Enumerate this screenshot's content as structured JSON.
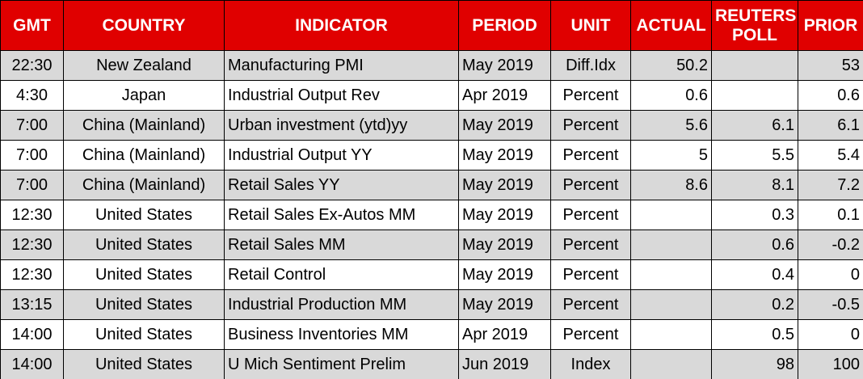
{
  "header": [
    "GMT",
    "COUNTRY",
    "INDICATOR",
    "PERIOD",
    "UNIT",
    "ACTUAL",
    "REUTERS POLL",
    "PRIOR"
  ],
  "rows": [
    [
      "22:30",
      "New Zealand",
      "Manufacturing PMI",
      "May 2019",
      "Diff.Idx",
      "50.2",
      null,
      "53"
    ],
    [
      "4:30",
      "Japan",
      "Industrial Output Rev",
      "Apr 2019",
      "Percent",
      "0.6",
      null,
      "0.6"
    ],
    [
      "7:00",
      "China (Mainland)",
      "Urban investment (ytd)yy",
      "May 2019",
      "Percent",
      "5.6",
      "6.1",
      "6.1"
    ],
    [
      "7:00",
      "China (Mainland)",
      "Industrial Output YY",
      "May 2019",
      "Percent",
      "5",
      "5.5",
      "5.4"
    ],
    [
      "7:00",
      "China (Mainland)",
      "Retail Sales YY",
      "May 2019",
      "Percent",
      "8.6",
      "8.1",
      "7.2"
    ],
    [
      "12:30",
      "United States",
      "Retail Sales Ex-Autos MM",
      "May 2019",
      "Percent",
      null,
      "0.3",
      "0.1"
    ],
    [
      "12:30",
      "United States",
      "Retail Sales MM",
      "May 2019",
      "Percent",
      null,
      "0.6",
      "-0.2"
    ],
    [
      "12:30",
      "United States",
      "Retail Control",
      "May 2019",
      "Percent",
      null,
      "0.4",
      "0"
    ],
    [
      "13:15",
      "United States",
      "Industrial Production MM",
      "May 2019",
      "Percent",
      null,
      "0.2",
      "-0.5"
    ],
    [
      "14:00",
      "United States",
      "Business Inventories MM",
      "Apr 2019",
      "Percent",
      null,
      "0.5",
      "0"
    ],
    [
      "14:00",
      "United States",
      "U Mich Sentiment Prelim",
      "Jun 2019",
      "Index",
      null,
      "98",
      "100"
    ]
  ]
}
